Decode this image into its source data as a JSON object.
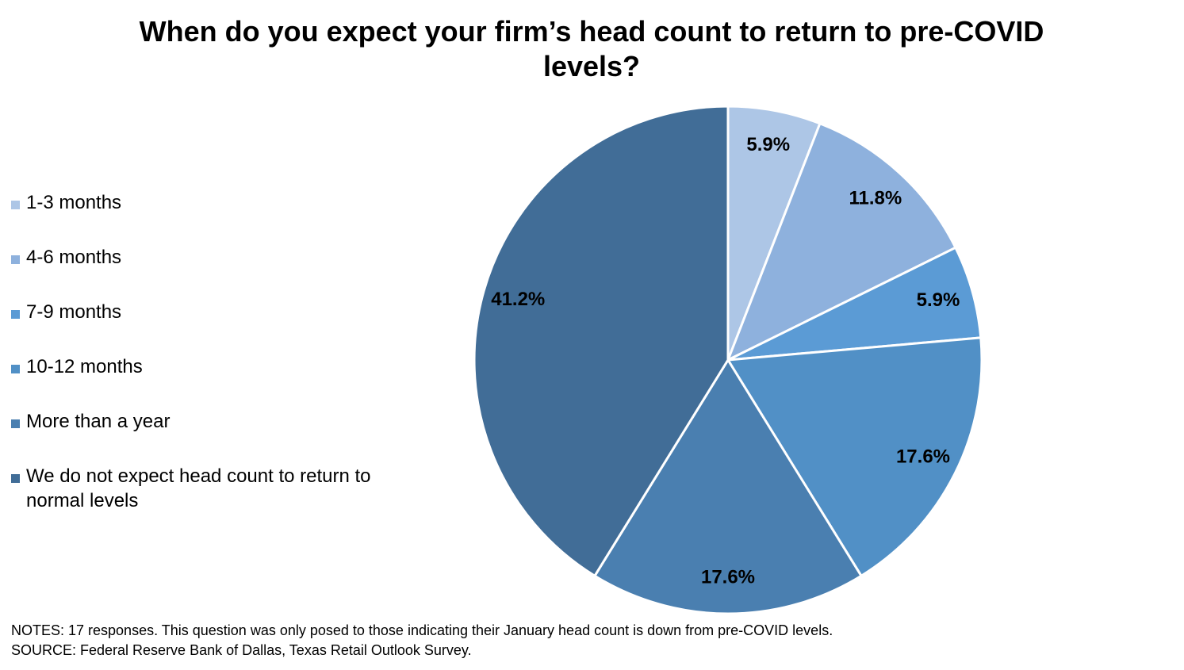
{
  "chart_data": {
    "type": "pie",
    "title": "When do you expect your firm’s head count to return to pre-COVID levels?",
    "categories": [
      "1-3 months",
      "4-6 months",
      "7-9 months",
      "10-12 months",
      "More than a year",
      "We do not expect head count to return to normal levels"
    ],
    "values": [
      5.9,
      11.8,
      5.9,
      17.6,
      17.6,
      41.2
    ],
    "value_labels": [
      "5.9%",
      "11.8%",
      "5.9%",
      "17.6%",
      "17.6%",
      "41.2%"
    ],
    "colors": [
      "#adc6e6",
      "#8eb1dd",
      "#5b9bd5",
      "#5190c6",
      "#4a7fb0",
      "#416d97"
    ],
    "legend": "left",
    "notes": "NOTES: 17 responses. This question was only posed to those indicating their January head count is down from pre-COVID levels.",
    "source": "SOURCE: Federal Reserve Bank of Dallas, Texas Retail Outlook Survey."
  }
}
